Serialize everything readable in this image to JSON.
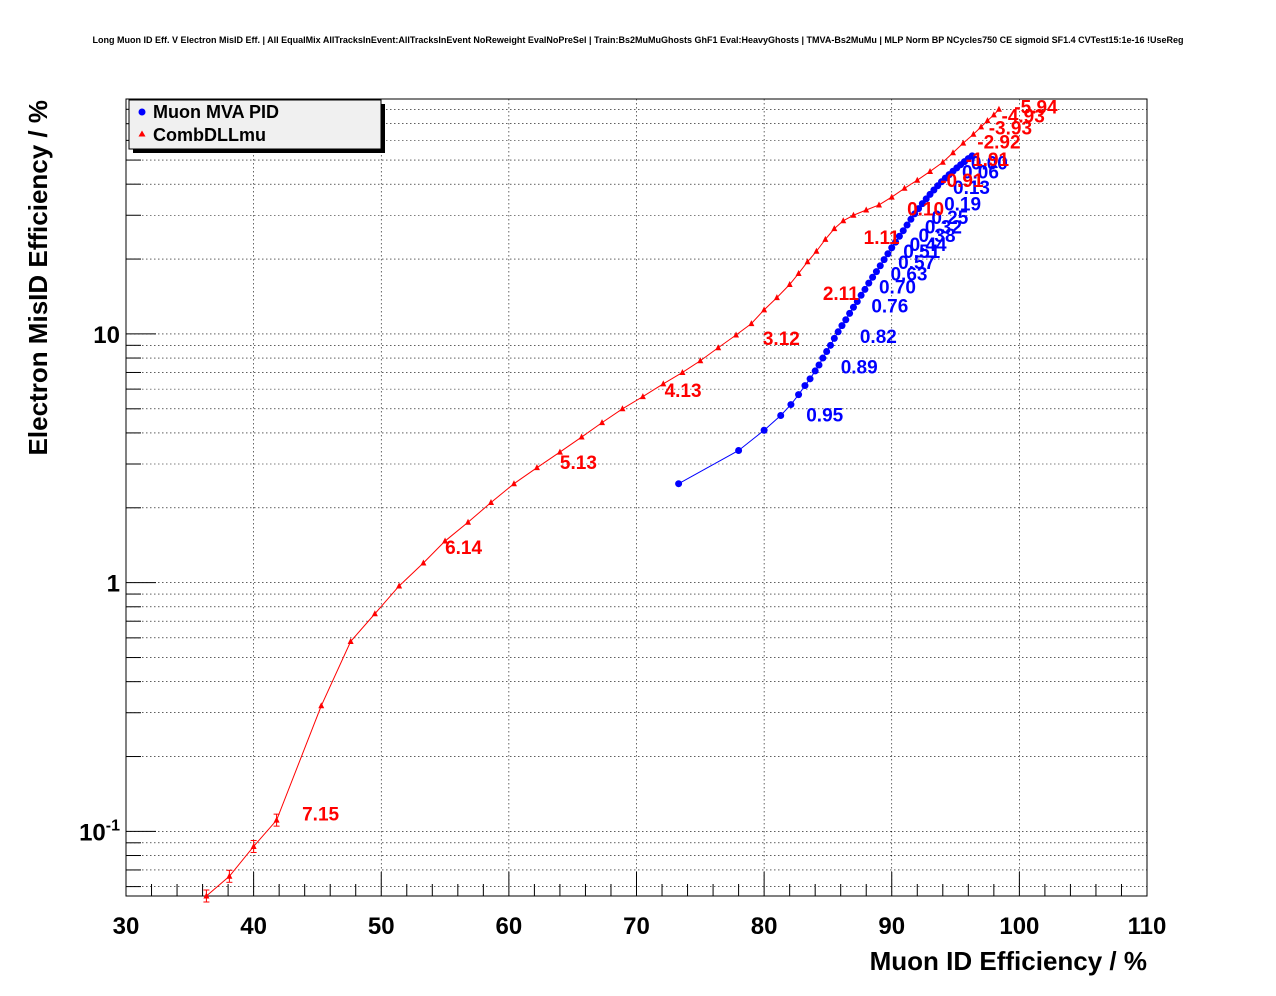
{
  "page": {
    "title": "Long Muon ID Eff. V Electron MisID Eff. | All EqualMix AllTracksInEvent:AllTracksInEvent NoReweight EvalNoPreSel | Train:Bs2MuMuGhosts GhF1 Eval:HeavyGhosts | TMVA-Bs2MuMu | MLP Norm BP NCycles750 CE sigmoid SF1.4 CVTest15:1e-16 !UseReg"
  },
  "chart_data": {
    "type": "scatter",
    "title": "Long Muon ID Eff. V Electron MisID Eff. | All EqualMix AllTracksInEvent:AllTracksInEvent NoReweight EvalNoPreSel | Train:Bs2MuMuGhosts GhF1 Eval:HeavyGhosts | TMVA-Bs2MuMu | MLP Norm BP NCycles750 CE sigmoid SF1.4 CVTest15:1e-16 !UseReg",
    "xlabel": "Muon ID Efficiency / %",
    "ylabel": "Electron MisID Efficiency / %",
    "xlim": [
      30,
      110
    ],
    "ylim": [
      0.055,
      88
    ],
    "yscale": "log",
    "grid": true,
    "legend_position": "top-left",
    "x_ticks": [
      "30",
      "40",
      "50",
      "60",
      "70",
      "80",
      "90",
      "100",
      "110"
    ],
    "y_ticks": [
      {
        "value": 0.1,
        "base": "10",
        "exp": "-1"
      },
      {
        "value": 1,
        "base": "1",
        "exp": ""
      },
      {
        "value": 10,
        "base": "10",
        "exp": ""
      }
    ],
    "series": [
      {
        "name": "Muon MVA PID",
        "color": "#0000ff",
        "marker": "circle",
        "x": [
          73.3,
          78.0,
          80.0,
          81.3,
          82.1,
          82.7,
          83.2,
          83.6,
          84.0,
          84.3,
          84.6,
          84.9,
          85.2,
          85.5,
          85.8,
          86.1,
          86.4,
          86.7,
          87.0,
          87.3,
          87.6,
          87.9,
          88.2,
          88.5,
          88.8,
          89.1,
          89.4,
          89.7,
          90.0,
          90.3,
          90.6,
          90.9,
          91.2,
          91.5,
          91.8,
          92.1,
          92.4,
          92.7,
          93.0,
          93.3,
          93.6,
          93.9,
          94.2,
          94.5,
          94.8,
          95.1,
          95.4,
          95.7,
          96.0,
          96.3
        ],
        "y": [
          2.5,
          3.4,
          4.1,
          4.7,
          5.2,
          5.7,
          6.2,
          6.6,
          7.1,
          7.5,
          8.0,
          8.5,
          9.0,
          9.6,
          10.2,
          10.8,
          11.4,
          12.1,
          12.8,
          13.5,
          14.3,
          15.1,
          16.0,
          16.9,
          17.8,
          18.8,
          19.9,
          21.0,
          22.2,
          23.4,
          24.7,
          26.0,
          27.4,
          28.9,
          30.4,
          31.9,
          33.4,
          34.9,
          36.4,
          37.9,
          39.4,
          40.9,
          42.3,
          43.7,
          45.1,
          46.5,
          47.9,
          49.3,
          50.7,
          52.0
        ],
        "cut_labels": [
          {
            "text": "0.95",
            "x": 83.3,
            "y": 4.75
          },
          {
            "text": "0.89",
            "x": 86.0,
            "y": 7.4
          },
          {
            "text": "0.82",
            "x": 87.5,
            "y": 9.8
          },
          {
            "text": "0.76",
            "x": 88.4,
            "y": 13.0
          },
          {
            "text": "0.70",
            "x": 89.0,
            "y": 15.5
          },
          {
            "text": "0.63",
            "x": 89.9,
            "y": 17.5
          },
          {
            "text": "0.57",
            "x": 90.5,
            "y": 19.5
          },
          {
            "text": "0.51",
            "x": 90.9,
            "y": 21.5
          },
          {
            "text": "0.44",
            "x": 91.4,
            "y": 23.0
          },
          {
            "text": "0.38",
            "x": 92.1,
            "y": 25.0
          },
          {
            "text": "0.32",
            "x": 92.6,
            "y": 27.0
          },
          {
            "text": "0.25",
            "x": 93.1,
            "y": 29.5
          },
          {
            "text": "0.19",
            "x": 94.1,
            "y": 33.5
          },
          {
            "text": "0.13",
            "x": 94.8,
            "y": 39.0
          },
          {
            "text": "0.06",
            "x": 95.5,
            "y": 45.0
          },
          {
            "text": "0.00",
            "x": 96.2,
            "y": 49.0
          }
        ]
      },
      {
        "name": "CombDLLmu",
        "color": "#ff0000",
        "marker": "triangle",
        "x": [
          36.3,
          38.1,
          40.0,
          41.8,
          45.3,
          47.6,
          49.5,
          51.4,
          53.3,
          55.0,
          56.8,
          58.6,
          60.4,
          62.2,
          64.0,
          65.7,
          67.3,
          68.9,
          70.5,
          72.1,
          73.6,
          75.0,
          76.4,
          77.8,
          79.0,
          80.0,
          81.0,
          82.0,
          82.7,
          83.4,
          84.1,
          84.8,
          85.5,
          86.2,
          87.0,
          88.0,
          89.0,
          90.0,
          91.0,
          92.0,
          93.0,
          94.0,
          94.8,
          95.6,
          96.4,
          97.0,
          97.5,
          98.0,
          98.4
        ],
        "y": [
          0.055,
          0.066,
          0.087,
          0.111,
          0.32,
          0.58,
          0.75,
          0.97,
          1.2,
          1.47,
          1.75,
          2.1,
          2.5,
          2.9,
          3.35,
          3.85,
          4.4,
          5.0,
          5.6,
          6.3,
          7.0,
          7.8,
          8.8,
          9.9,
          11.0,
          12.5,
          14.0,
          15.8,
          17.5,
          19.5,
          21.5,
          24.0,
          26.5,
          28.5,
          30.0,
          31.5,
          33.0,
          35.5,
          38.5,
          41.5,
          45.0,
          49.0,
          53.5,
          58.5,
          63.5,
          68.0,
          72.0,
          76.0,
          80.0
        ],
        "cut_labels": [
          {
            "text": "7.15",
            "x": 43.8,
            "y": 0.118
          },
          {
            "text": "6.14",
            "x": 55.0,
            "y": 1.39
          },
          {
            "text": "5.13",
            "x": 64.0,
            "y": 3.05
          },
          {
            "text": "4.13",
            "x": 72.2,
            "y": 5.95
          },
          {
            "text": "3.12",
            "x": 79.9,
            "y": 9.65
          },
          {
            "text": "2.11",
            "x": 84.6,
            "y": 14.6
          },
          {
            "text": "1.11",
            "x": 87.8,
            "y": 24.5
          },
          {
            "text": "0.10",
            "x": 91.2,
            "y": 32.0
          },
          {
            "text": "-0.91",
            "x": 93.8,
            "y": 41.5
          },
          {
            "text": "-1.91",
            "x": 95.8,
            "y": 50.5
          },
          {
            "text": "-2.92",
            "x": 96.7,
            "y": 59.5
          },
          {
            "text": "-3.93",
            "x": 97.6,
            "y": 67.5
          },
          {
            "text": "-4.93",
            "x": 98.6,
            "y": 75.5
          },
          {
            "text": "-5.94",
            "x": 99.6,
            "y": 82.0
          }
        ]
      }
    ]
  }
}
